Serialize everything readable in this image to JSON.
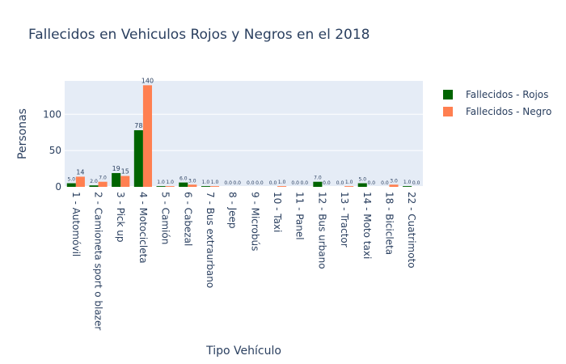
{
  "chart_data": {
    "type": "bar",
    "title": "Fallecidos en Vehiculos Rojos y Negros en el 2018",
    "xlabel": "Tipo Vehículo",
    "ylabel": "Personas",
    "ylim": [
      0,
      146
    ],
    "yticks": [
      0,
      50,
      100
    ],
    "grid": true,
    "legend_position": "top-right",
    "categories": [
      "1 - Automóvil",
      "2 - Camioneta sport o blazer",
      "3 - Pick up",
      "4 - Motocicleta",
      "5 - Camión",
      "6 - Cabezal",
      "7 - Bus extraurbano",
      "8 - Jeep",
      "9 - Microbús",
      "10 - Taxi",
      "11 - Panel",
      "12 - Bus urbano",
      "13 - Tractor",
      "14 - Moto taxi",
      "18 - Bicicleta",
      "22 - Cuatrimoto"
    ],
    "series": [
      {
        "name": "Fallecidos - Rojos",
        "color": "#006400",
        "values": [
          5,
          2,
          19,
          78,
          1,
          6,
          1,
          0,
          0,
          0,
          0,
          7,
          0,
          5,
          0,
          1
        ],
        "labels": [
          "5.0",
          "2.0",
          "19",
          "78",
          "1.0",
          "6.0",
          "1.0",
          "0.0",
          "0.0",
          "0.0",
          "0.0",
          "7.0",
          "0.0",
          "5.0",
          "0.0",
          "1.0"
        ]
      },
      {
        "name": "Fallecidos - Negro",
        "color": "#ff7f50",
        "values": [
          14,
          7,
          15,
          140,
          1,
          3,
          1,
          0,
          0,
          1,
          0,
          0,
          1,
          0,
          3,
          0
        ],
        "labels": [
          "14",
          "7.0",
          "15",
          "140",
          "1.0",
          "3.0",
          "1.0",
          "0.0",
          "0.0",
          "1.0",
          "0.0",
          "0.0",
          "1.0",
          "0.0",
          "3.0",
          "0.0"
        ]
      }
    ]
  }
}
